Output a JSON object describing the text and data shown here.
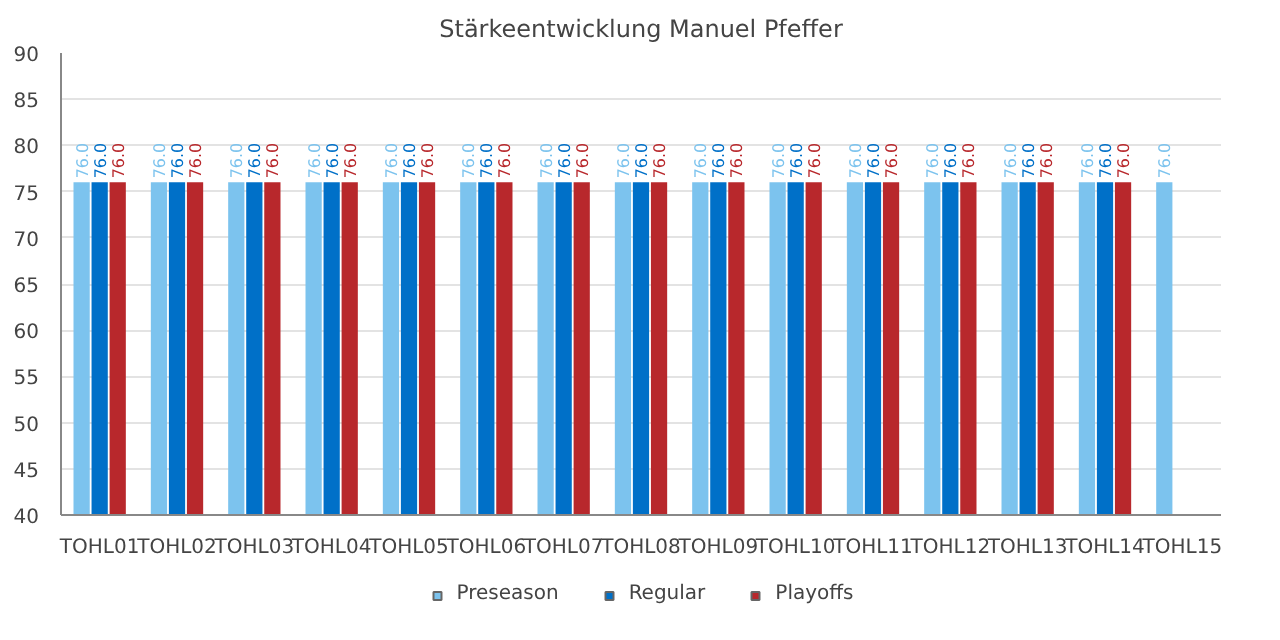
{
  "chart_data": {
    "type": "bar",
    "title": "Stärkeentwicklung Manuel Pfeffer",
    "categories": [
      "TOHL01",
      "TOHL02",
      "TOHL03",
      "TOHL04",
      "TOHL05",
      "TOHL06",
      "TOHL07",
      "TOHL08",
      "TOHL09",
      "TOHL10",
      "TOHL11",
      "TOHL12",
      "TOHL13",
      "TOHL14",
      "TOHL15"
    ],
    "series": [
      {
        "name": "Preseason",
        "color": "#7cc3ee",
        "values": [
          76.0,
          76.0,
          76.0,
          76.0,
          76.0,
          76.0,
          76.0,
          76.0,
          76.0,
          76.0,
          76.0,
          76.0,
          76.0,
          76.0,
          76.0
        ],
        "value_labels": [
          "76.0",
          "76.0",
          "76.0",
          "76.0",
          "76.0",
          "76.0",
          "76.0",
          "76.0",
          "76.0",
          "76.0",
          "76.0",
          "76.0",
          "76.0",
          "76.0",
          "76.0"
        ]
      },
      {
        "name": "Regular",
        "color": "#0070c8",
        "values": [
          76.0,
          76.0,
          76.0,
          76.0,
          76.0,
          76.0,
          76.0,
          76.0,
          76.0,
          76.0,
          76.0,
          76.0,
          76.0,
          76.0,
          null
        ],
        "value_labels": [
          "76.0",
          "76.0",
          "76.0",
          "76.0",
          "76.0",
          "76.0",
          "76.0",
          "76.0",
          "76.0",
          "76.0",
          "76.0",
          "76.0",
          "76.0",
          "76.0",
          null
        ]
      },
      {
        "name": "Playoffs",
        "color": "#b8282c",
        "values": [
          76.0,
          76.0,
          76.0,
          76.0,
          76.0,
          76.0,
          76.0,
          76.0,
          76.0,
          76.0,
          76.0,
          76.0,
          76.0,
          76.0,
          null
        ],
        "value_labels": [
          "76.0",
          "76.0",
          "76.0",
          "76.0",
          "76.0",
          "76.0",
          "76.0",
          "76.0",
          "76.0",
          "76.0",
          "76.0",
          "76.0",
          "76.0",
          "76.0",
          null
        ]
      }
    ],
    "ylim": [
      40,
      90
    ],
    "yticks": [
      40,
      45,
      50,
      55,
      60,
      65,
      70,
      75,
      80,
      85,
      90
    ],
    "grid": "y",
    "legend": "bottom"
  }
}
